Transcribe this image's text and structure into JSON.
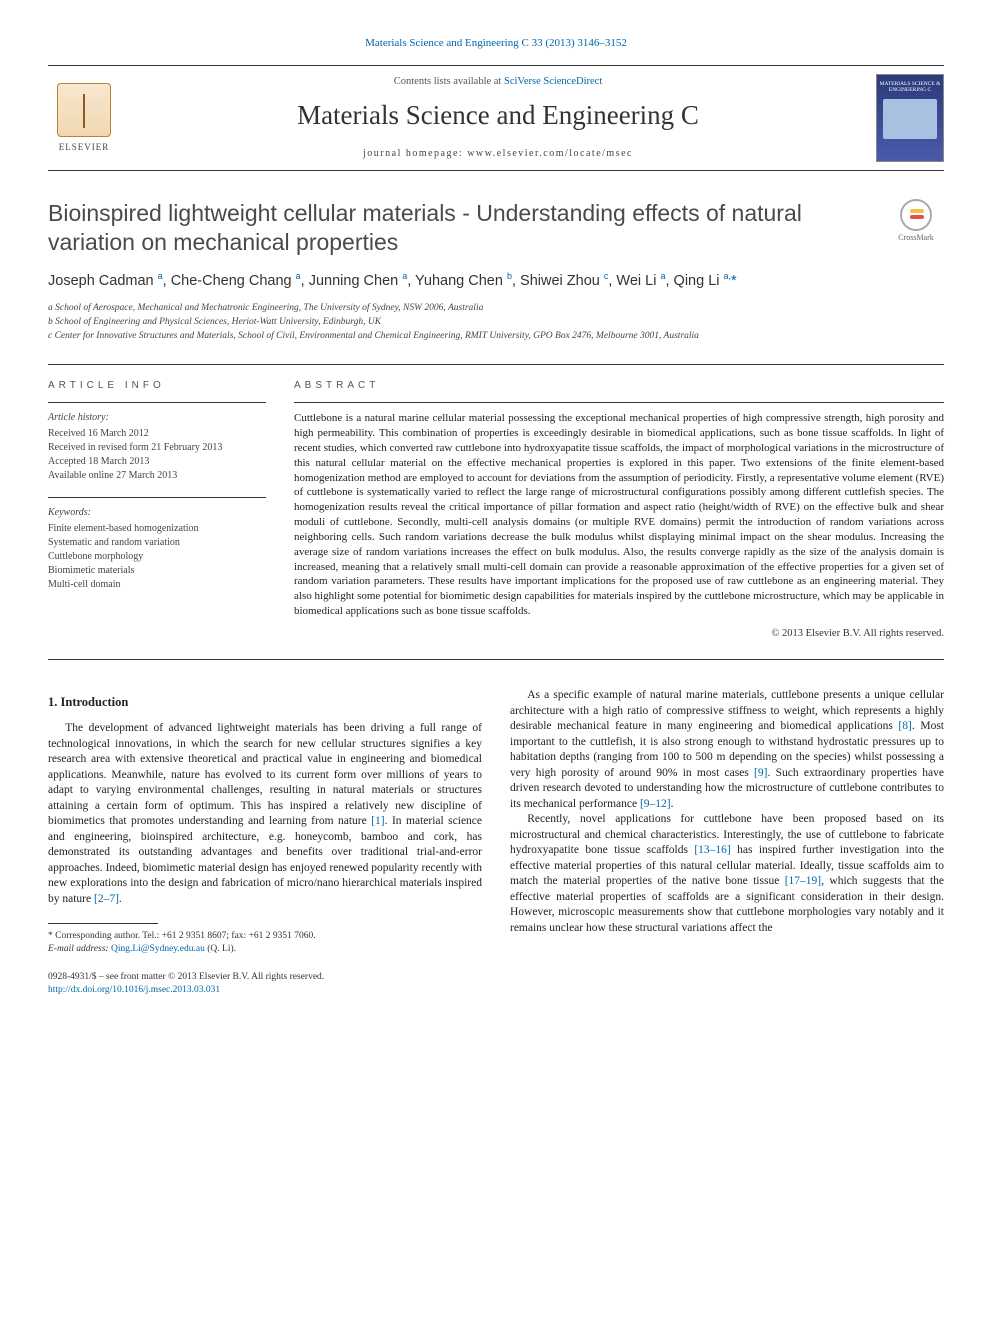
{
  "top_citation": "Materials Science and Engineering C 33 (2013) 3146–3152",
  "header": {
    "contents_prefix": "Contents lists available at ",
    "contents_link": "SciVerse ScienceDirect",
    "journal_title": "Materials Science and Engineering C",
    "homepage_line": "journal homepage: www.elsevier.com/locate/msec",
    "publisher_name": "ELSEVIER",
    "cover_text": "MATERIALS SCIENCE & ENGINEERING C"
  },
  "article": {
    "title": "Bioinspired lightweight cellular materials - Understanding effects of natural variation on mechanical properties",
    "crossmark_label": "CrossMark",
    "authors_html": "Joseph Cadman <sup>a</sup>, Che-Cheng Chang <sup>a</sup>, Junning Chen <sup>a</sup>, Yuhang Chen <sup>b</sup>, Shiwei Zhou <sup>c</sup>, Wei Li <sup>a</sup>, Qing Li <sup>a,</sup><span class='star'>*</span>",
    "affiliations": [
      "a  School of Aerospace, Mechanical and Mechatronic Engineering, The University of Sydney, NSW 2006, Australia",
      "b  School of Engineering and Physical Sciences, Heriot-Watt University, Edinburgh, UK",
      "c  Center for Innovative Structures and Materials, School of Civil, Environmental and Chemical Engineering, RMIT University, GPO Box 2476, Melbourne 3001, Australia"
    ]
  },
  "info": {
    "label": "ARTICLE INFO",
    "history_hdr": "Article history:",
    "history": [
      "Received 16 March 2012",
      "Received in revised form 21 February 2013",
      "Accepted 18 March 2013",
      "Available online 27 March 2013"
    ],
    "keywords_hdr": "Keywords:",
    "keywords": [
      "Finite element-based homogenization",
      "Systematic and random variation",
      "Cuttlebone morphology",
      "Biomimetic materials",
      "Multi-cell domain"
    ]
  },
  "abstract": {
    "label": "ABSTRACT",
    "text": "Cuttlebone is a natural marine cellular material possessing the exceptional mechanical properties of high compressive strength, high porosity and high permeability. This combination of properties is exceedingly desirable in biomedical applications, such as bone tissue scaffolds. In light of recent studies, which converted raw cuttlebone into hydroxyapatite tissue scaffolds, the impact of morphological variations in the microstructure of this natural cellular material on the effective mechanical properties is explored in this paper. Two extensions of the finite element-based homogenization method are employed to account for deviations from the assumption of periodicity. Firstly, a representative volume element (RVE) of cuttlebone is systematically varied to reflect the large range of microstructural configurations possibly among different cuttlefish species. The homogenization results reveal the critical importance of pillar formation and aspect ratio (height/width of RVE) on the effective bulk and shear moduli of cuttlebone. Secondly, multi-cell analysis domains (or multiple RVE domains) permit the introduction of random variations across neighboring cells. Such random variations decrease the bulk modulus whilst displaying minimal impact on the shear modulus. Increasing the average size of random variations increases the effect on bulk modulus. Also, the results converge rapidly as the size of the analysis domain is increased, meaning that a relatively small multi-cell domain can provide a reasonable approximation of the effective properties for a given set of random variation parameters. These results have important implications for the proposed use of raw cuttlebone as an engineering material. They also highlight some potential for biomimetic design capabilities for materials inspired by the cuttlebone microstructure, which may be applicable in biomedical applications such as bone tissue scaffolds.",
    "copyright": "© 2013 Elsevier B.V. All rights reserved."
  },
  "body": {
    "heading": "1. Introduction",
    "p1": "The development of advanced lightweight materials has been driving a full range of technological innovations, in which the search for new cellular structures signifies a key research area with extensive theoretical and practical value in engineering and biomedical applications. Meanwhile, nature has evolved to its current form over millions of years to adapt to varying environmental challenges, resulting in natural materials or structures attaining a certain form of optimum. This has inspired a relatively new discipline of biomimetics that promotes understanding and learning from nature ",
    "ref1": "[1]",
    "p1b": ". In material science and engineering, bioinspired architecture, e.g. honeycomb, bamboo and cork, has demonstrated its outstanding advantages and benefits over traditional trial-and-error approaches. Indeed, biomimetic material design has enjoyed renewed popularity recently with new explorations into the design and fabrication of micro/nano hierarchical materials inspired by nature ",
    "ref2": "[2–7]",
    "p1c": ".",
    "p2a": "As a specific example of natural marine materials, cuttlebone presents a unique cellular architecture with a high ratio of compressive stiffness to weight, which represents a highly desirable mechanical feature in many engineering and biomedical applications ",
    "ref8": "[8]",
    "p2b": ". Most important to the cuttlefish, it is also strong enough to withstand hydrostatic pressures up to habitation depths (ranging from 100 to 500 m depending on the species) whilst possessing a very high porosity of around 90% in most cases ",
    "ref9": "[9]",
    "p2c": ". Such extraordinary properties have driven research devoted to understanding how the microstructure of cuttlebone contributes to its mechanical performance ",
    "ref912": "[9–12]",
    "p2d": ".",
    "p3a": "Recently, novel applications for cuttlebone have been proposed based on its microstructural and chemical characteristics. Interestingly, the use of cuttlebone to fabricate hydroxyapatite bone tissue scaffolds ",
    "ref1316": "[13–16]",
    "p3b": " has inspired further investigation into the effective material properties of this natural cellular material. Ideally, tissue scaffolds aim to match the material properties of the native bone tissue ",
    "ref1719": "[17–19]",
    "p3c": ", which suggests that the effective material properties of scaffolds are a significant consideration in their design. However, microscopic measurements show that cuttlebone morphologies vary notably and it remains unclear how these structural variations affect the"
  },
  "corr": {
    "line1": "* Corresponding author. Tel.: +61 2 9351 8607; fax: +61 2 9351 7060.",
    "line2_prefix": "E-mail address: ",
    "email": "Qing.Li@Sydney.edu.au",
    "line2_suffix": " (Q. Li)."
  },
  "pubfooter": {
    "line1": "0928-4931/$ – see front matter © 2013 Elsevier B.V. All rights reserved.",
    "doi": "http://dx.doi.org/10.1016/j.msec.2013.03.031"
  },
  "colors": {
    "link": "#0066aa",
    "text": "#222222",
    "rule": "#333333",
    "elsevier_orange": "#e98b2c"
  }
}
